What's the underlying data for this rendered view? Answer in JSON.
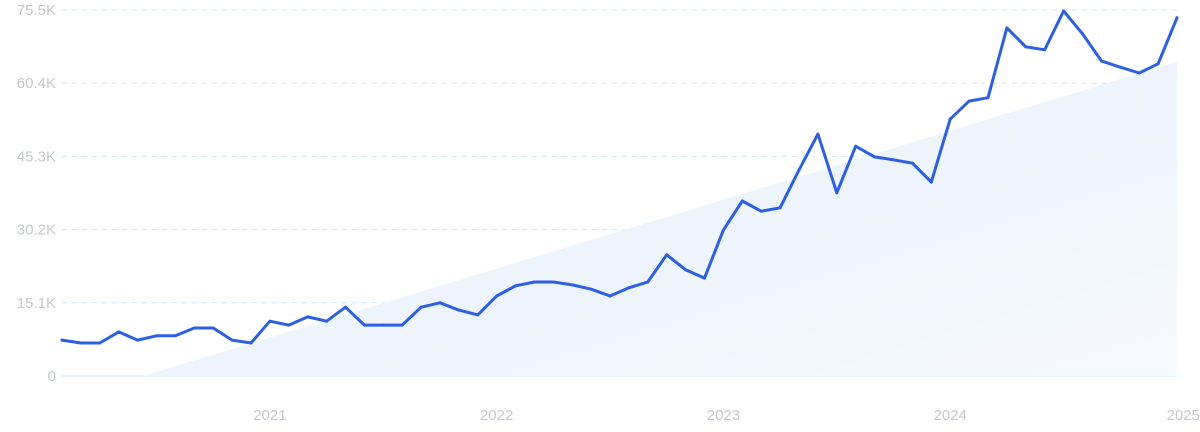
{
  "chart_data": {
    "type": "line",
    "title": "",
    "xlabel": "",
    "ylabel": "",
    "x_start": "2020-02",
    "x_end": "2025-01",
    "x_tick_labels": [
      "2021",
      "2022",
      "2023",
      "2024",
      "2025"
    ],
    "y_tick_labels": [
      "0",
      "15.1K",
      "30.2K",
      "45.3K",
      "60.4K",
      "75.5K"
    ],
    "ylim": [
      0,
      75.5
    ],
    "y_unit": "K",
    "grid": true,
    "legend": "none",
    "series": [
      {
        "values": [
          7.4,
          6.8,
          6.8,
          9.1,
          7.4,
          8.3,
          8.3,
          9.9,
          9.9,
          7.4,
          6.8,
          11.3,
          10.5,
          12.2,
          11.3,
          14.2,
          10.5,
          10.5,
          10.5,
          14.2,
          15.1,
          13.6,
          12.6,
          16.5,
          18.6,
          19.4,
          19.4,
          18.8,
          17.9,
          16.5,
          18.2,
          19.4,
          25.0,
          21.9,
          20.2,
          30.1,
          36.1,
          34.0,
          34.7,
          42.5,
          49.9,
          37.8,
          47.4,
          45.2,
          44.6,
          43.9,
          40.0,
          53.0,
          56.7,
          57.4,
          71.8,
          67.9,
          67.3,
          75.3,
          70.6,
          65.0,
          63.7,
          62.5,
          64.4,
          73.9
        ]
      }
    ],
    "trend": {
      "start_month_index": 4.3,
      "start_value": 0,
      "end_value": 64.8
    },
    "colors": {
      "line": "#2d5fe3",
      "trend_fill": "#e3eefb",
      "grid": "#cfe6f7",
      "tick_text": "#c4c7cf"
    }
  }
}
